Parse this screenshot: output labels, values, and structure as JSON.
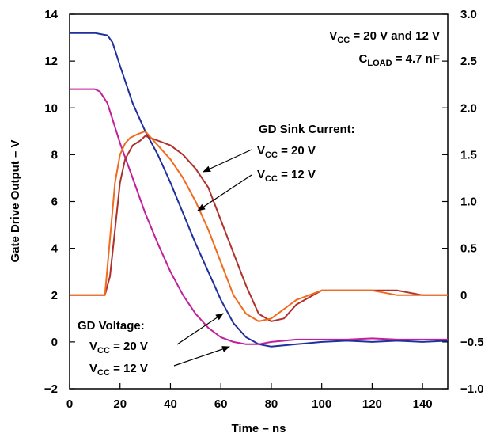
{
  "chart_data": {
    "type": "line",
    "xlabel": "Time – ns",
    "ylabel": "Gate Drive Output – V",
    "xlim": [
      0,
      150
    ],
    "ylim": [
      -2,
      14
    ],
    "y2lim": [
      -1.0,
      3.0
    ],
    "grid": false,
    "x_ticks": [
      "0",
      "20",
      "40",
      "60",
      "80",
      "100",
      "120",
      "140"
    ],
    "y_ticks": [
      "−2",
      "0",
      "2",
      "4",
      "6",
      "8",
      "10",
      "12",
      "14"
    ],
    "y2_ticks": [
      "−1.0",
      "−0.5",
      "0",
      "0.5",
      "1.0",
      "1.5",
      "2.0",
      "2.5",
      "3.0"
    ],
    "annotations": {
      "cond_line1": {
        "v": "V",
        "sub": "CC",
        "rest": " = 20 V and 12 V"
      },
      "cond_line2": {
        "v": "C",
        "sub": "LOAD",
        "rest": " = 4.7 nF"
      },
      "sink_title": "GD Sink Current:",
      "sink_20": {
        "v": "V",
        "sub": "CC",
        "rest": " = 20 V"
      },
      "sink_12": {
        "v": "V",
        "sub": "CC",
        "rest": " = 12 V"
      },
      "volt_title": "GD Voltage:",
      "volt_20": {
        "v": "V",
        "sub": "CC",
        "rest": " = 20 V"
      },
      "volt_12": {
        "v": "V",
        "sub": "CC",
        "rest": " = 12 V"
      }
    },
    "series": [
      {
        "axis": "left",
        "color": "#1f2f9e",
        "x": [
          0,
          10,
          15,
          17,
          20,
          25,
          30,
          35,
          40,
          45,
          50,
          55,
          60,
          65,
          70,
          75,
          80,
          85,
          90,
          100,
          110,
          120,
          130,
          140,
          150
        ],
        "y": [
          13.2,
          13.2,
          13.1,
          12.8,
          11.8,
          10.2,
          9.0,
          8.0,
          6.8,
          5.5,
          4.2,
          3.0,
          1.8,
          0.8,
          0.2,
          -0.1,
          -0.2,
          -0.15,
          -0.1,
          0.0,
          0.05,
          0.0,
          0.05,
          0.0,
          0.05
        ]
      },
      {
        "axis": "left",
        "color": "#c0209a",
        "x": [
          0,
          10,
          12,
          15,
          20,
          25,
          30,
          35,
          40,
          45,
          50,
          55,
          60,
          65,
          70,
          75,
          80,
          90,
          100,
          110,
          120,
          130,
          140,
          150
        ],
        "y": [
          10.8,
          10.8,
          10.7,
          10.2,
          8.5,
          7.0,
          5.5,
          4.2,
          3.0,
          2.0,
          1.2,
          0.6,
          0.2,
          0.0,
          -0.1,
          -0.1,
          0.0,
          0.1,
          0.1,
          0.1,
          0.15,
          0.1,
          0.1,
          0.1
        ]
      },
      {
        "axis": "right",
        "color": "#b0312a",
        "x": [
          0,
          14,
          16,
          18,
          20,
          22,
          25,
          28,
          30,
          35,
          40,
          45,
          50,
          55,
          60,
          65,
          70,
          75,
          80,
          85,
          90,
          100,
          110,
          120,
          130,
          140,
          150
        ],
        "y": [
          0.0,
          0.0,
          0.2,
          0.7,
          1.2,
          1.45,
          1.6,
          1.65,
          1.7,
          1.65,
          1.6,
          1.5,
          1.35,
          1.15,
          0.8,
          0.45,
          0.1,
          -0.2,
          -0.28,
          -0.25,
          -0.1,
          0.05,
          0.05,
          0.05,
          0.05,
          0.0,
          0.0
        ]
      },
      {
        "axis": "right",
        "color": "#f26a1b",
        "x": [
          0,
          14,
          16,
          18,
          20,
          22,
          24,
          27,
          30,
          35,
          40,
          45,
          50,
          55,
          60,
          65,
          70,
          75,
          80,
          85,
          90,
          100,
          110,
          120,
          130,
          140,
          150
        ],
        "y": [
          0.0,
          0.0,
          0.6,
          1.2,
          1.5,
          1.62,
          1.68,
          1.72,
          1.75,
          1.6,
          1.45,
          1.25,
          1.0,
          0.7,
          0.35,
          0.0,
          -0.2,
          -0.28,
          -0.25,
          -0.15,
          -0.05,
          0.05,
          0.05,
          0.05,
          0.0,
          0.0,
          0.0
        ]
      }
    ]
  }
}
